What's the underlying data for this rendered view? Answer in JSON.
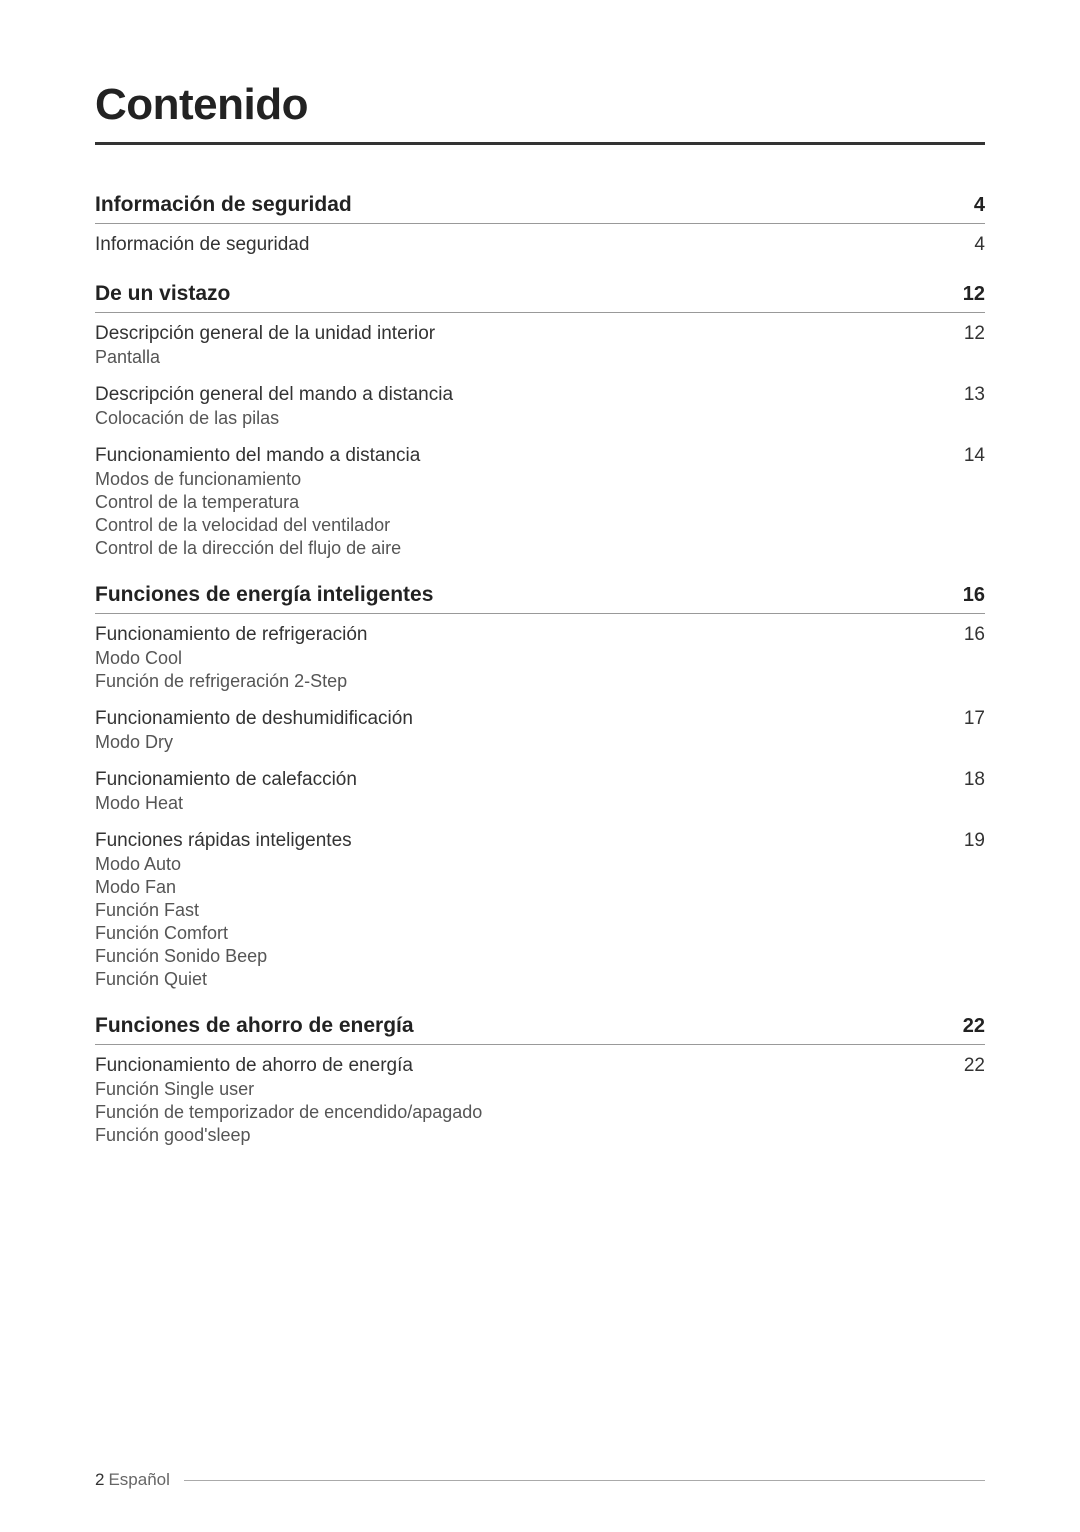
{
  "title": "Contenido",
  "sections": [
    {
      "title": "Información de seguridad",
      "page": "4",
      "items": [
        {
          "title": "Información de seguridad",
          "page": "4",
          "subitems": []
        }
      ]
    },
    {
      "title": "De un vistazo",
      "page": "12",
      "items": [
        {
          "title": "Descripción general de la unidad interior",
          "page": "12",
          "subitems": [
            "Pantalla"
          ]
        },
        {
          "title": "Descripción general del mando a distancia",
          "page": "13",
          "subitems": [
            "Colocación de las pilas"
          ]
        },
        {
          "title": "Funcionamiento del mando a distancia",
          "page": "14",
          "subitems": [
            "Modos de funcionamiento",
            "Control de la temperatura",
            "Control de la velocidad del ventilador",
            "Control de la dirección del flujo de aire"
          ]
        }
      ]
    },
    {
      "title": "Funciones de energía inteligentes",
      "page": "16",
      "items": [
        {
          "title": "Funcionamiento de refrigeración",
          "page": "16",
          "subitems": [
            "Modo Cool",
            "Función de refrigeración 2-Step"
          ]
        },
        {
          "title": "Funcionamiento de deshumidificación",
          "page": "17",
          "subitems": [
            "Modo Dry"
          ]
        },
        {
          "title": "Funcionamiento de calefacción",
          "page": "18",
          "subitems": [
            "Modo Heat"
          ]
        },
        {
          "title": "Funciones rápidas inteligentes",
          "page": "19",
          "subitems": [
            "Modo Auto",
            "Modo Fan",
            "Función Fast",
            "Función Comfort",
            "Función Sonido Beep",
            "Función Quiet"
          ]
        }
      ]
    },
    {
      "title": "Funciones de ahorro de energía",
      "page": "22",
      "items": [
        {
          "title": "Funcionamiento de ahorro de energía",
          "page": "22",
          "subitems": [
            "Función Single user",
            "Función de temporizador de encendido/apagado",
            "Función good'sleep"
          ]
        }
      ]
    }
  ],
  "footer": {
    "page": "2",
    "language": "Español"
  }
}
